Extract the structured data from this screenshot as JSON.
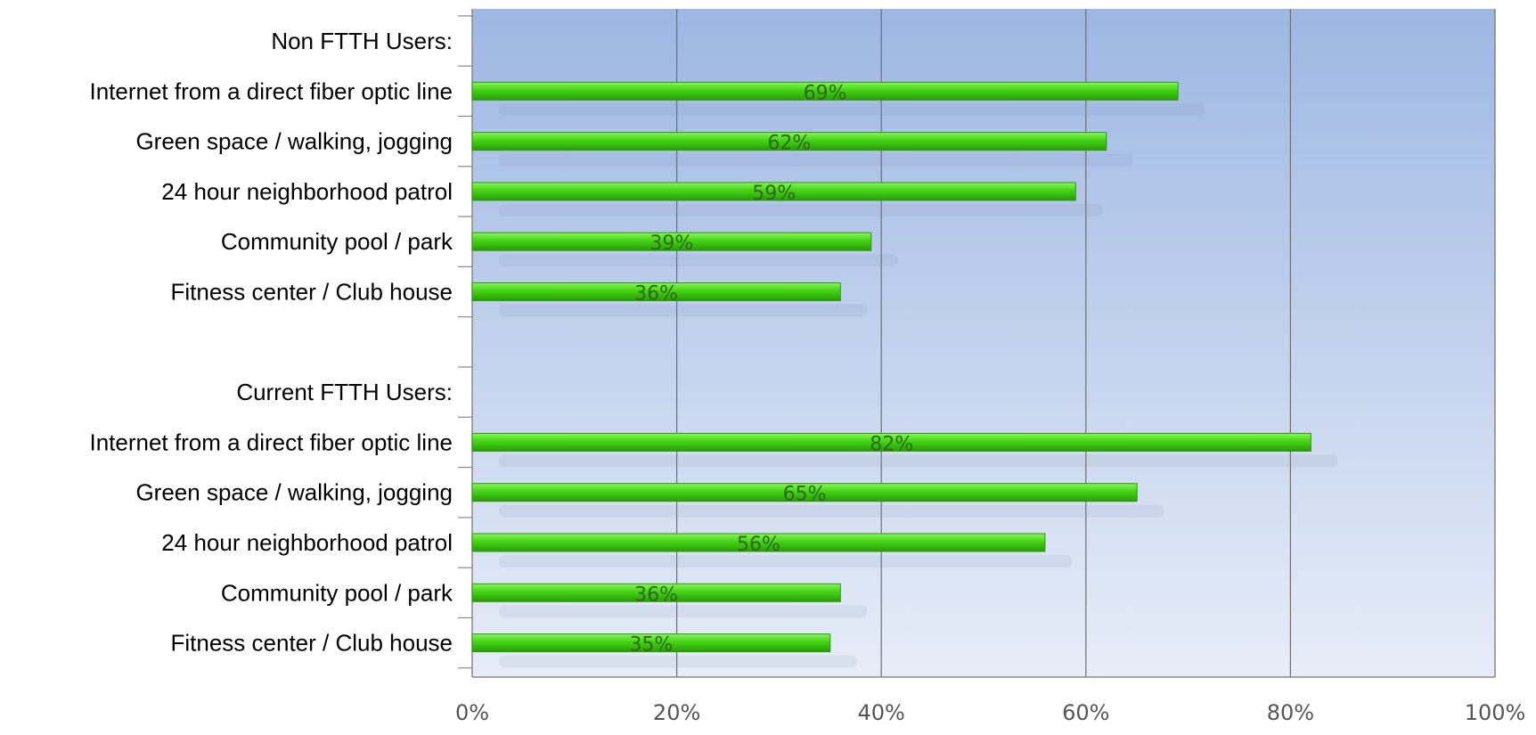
{
  "chart_data": {
    "type": "bar",
    "orientation": "horizontal",
    "categories": [
      "Non FTTH Users:",
      "Internet from a direct fiber optic line",
      "Green space / walking, jogging",
      "24 hour neighborhood patrol",
      "Community pool / park",
      "Fitness center / Club house",
      "",
      "Current FTTH Users:",
      "Internet from a direct fiber optic line",
      "Green space / walking, jogging",
      "24 hour neighborhood patrol",
      "Community pool / park",
      "Fitness center / Club house"
    ],
    "values": [
      null,
      69,
      62,
      59,
      39,
      36,
      null,
      null,
      82,
      65,
      56,
      36,
      35
    ],
    "data_labels": [
      "",
      "69%",
      "62%",
      "59%",
      "39%",
      "36%",
      "",
      "",
      "82%",
      "65%",
      "56%",
      "36%",
      "35%"
    ],
    "x_ticks": [
      "0%",
      "20%",
      "40%",
      "60%",
      "80%",
      "100%"
    ],
    "xlim": [
      0,
      100
    ],
    "grid": true,
    "title": "",
    "xlabel": "",
    "ylabel": "",
    "colors": {
      "bar": "#43d414",
      "bar_light": "#8cf45a",
      "bar_dark": "#2a9a0a",
      "plot_bg_top": "#9db7e3",
      "plot_bg_bottom": "#e7edf8",
      "grid": "#6f6f6f",
      "data_label": "#2b6a10"
    }
  }
}
